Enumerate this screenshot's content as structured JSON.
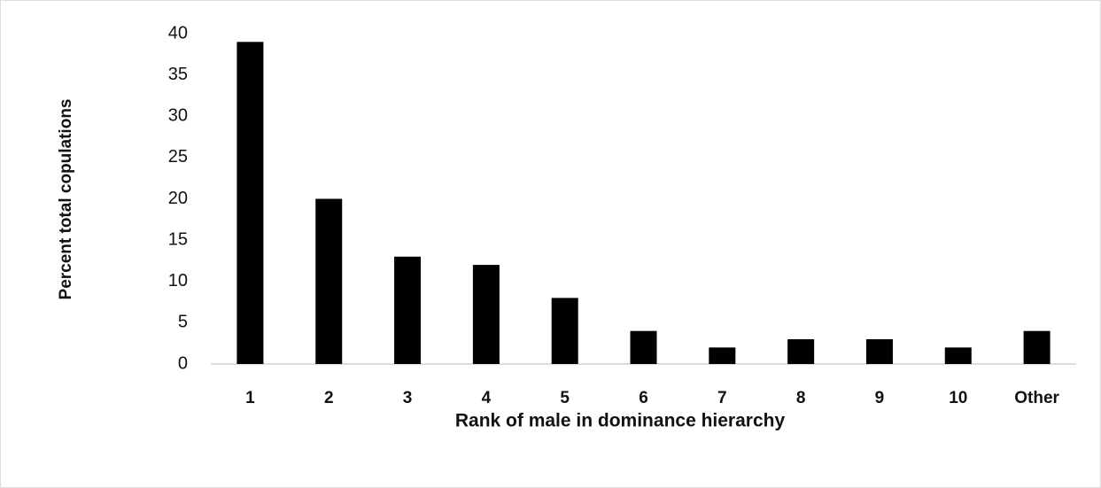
{
  "chart_data": {
    "type": "bar",
    "xlabel": "Rank of male in dominance hierarchy",
    "ylabel": "Percent total copulations",
    "categories": [
      "1",
      "2",
      "3",
      "4",
      "5",
      "6",
      "7",
      "8",
      "9",
      "10",
      "Other"
    ],
    "values": [
      39,
      20,
      13,
      12,
      8,
      4,
      2,
      3,
      3,
      2,
      4
    ],
    "color": "#000000",
    "ylim": [
      0,
      40
    ],
    "yticks": [
      0,
      5,
      10,
      15,
      20,
      25,
      30,
      35,
      40
    ],
    "grid": false
  }
}
